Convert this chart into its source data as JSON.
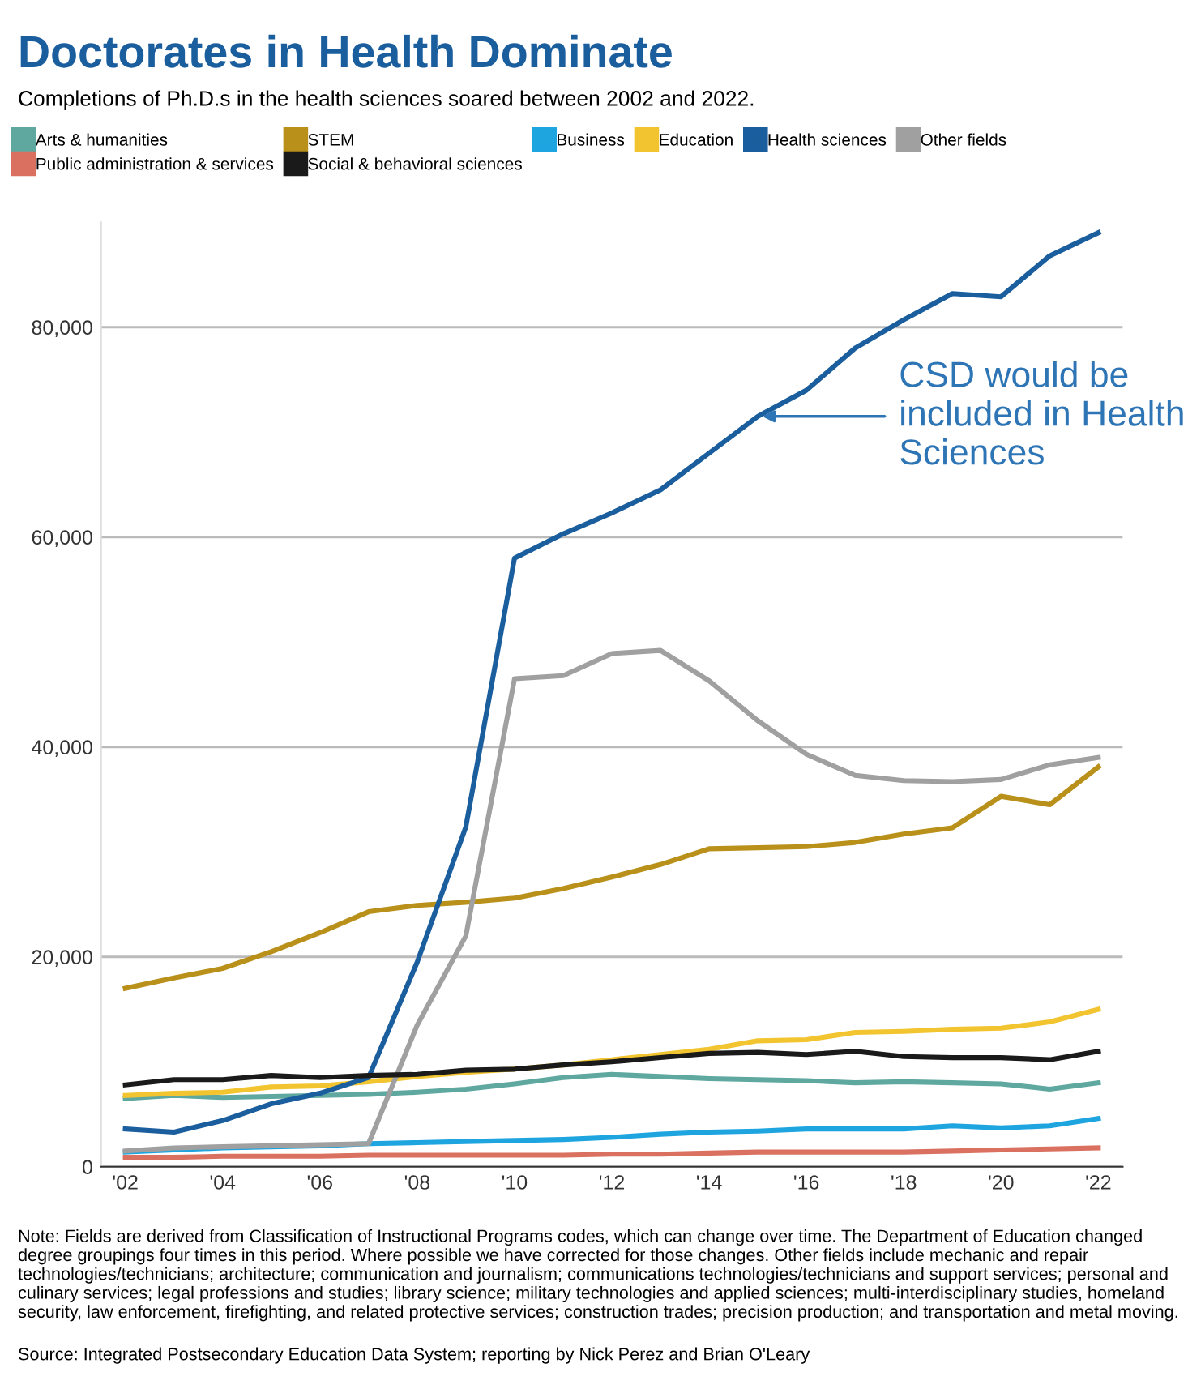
{
  "chart_data": {
    "type": "line",
    "title": "Doctorates in Health Dominate",
    "subtitle": "Completions of Ph.D.s in the health sciences soared between 2002 and 2022.",
    "x": [
      2002,
      2003,
      2004,
      2005,
      2006,
      2007,
      2008,
      2009,
      2010,
      2011,
      2012,
      2013,
      2014,
      2015,
      2016,
      2017,
      2018,
      2019,
      2020,
      2021,
      2022
    ],
    "series": [
      {
        "name": "Arts & humanities",
        "color": "#5fa8a0",
        "values": [
          6500,
          6800,
          6600,
          6700,
          6800,
          6900,
          7100,
          7400,
          7900,
          8500,
          8800,
          8600,
          8400,
          8300,
          8200,
          8000,
          8100,
          8000,
          7900,
          7400,
          8000
        ]
      },
      {
        "name": "STEM",
        "color": "#b8901a",
        "values": [
          17000,
          18000,
          18900,
          20500,
          22300,
          24300,
          24900,
          25200,
          25600,
          26500,
          27600,
          28800,
          30300,
          30400,
          30500,
          30900,
          31700,
          32300,
          35300,
          34500,
          38100
        ]
      },
      {
        "name": "Business",
        "color": "#1ea5e0",
        "values": [
          1400,
          1600,
          1800,
          1900,
          2000,
          2200,
          2300,
          2400,
          2500,
          2600,
          2800,
          3100,
          3300,
          3400,
          3600,
          3600,
          3600,
          3900,
          3700,
          3900,
          4600
        ]
      },
      {
        "name": "Education",
        "color": "#f2c530",
        "values": [
          6800,
          7000,
          7100,
          7600,
          7700,
          8100,
          8600,
          9000,
          9300,
          9700,
          10200,
          10700,
          11200,
          12000,
          12100,
          12800,
          12900,
          13100,
          13200,
          13800,
          15000
        ]
      },
      {
        "name": "Health sciences",
        "color": "#1b5e9e",
        "values": [
          3600,
          3300,
          4400,
          6000,
          7000,
          8500,
          19500,
          32400,
          58000,
          60300,
          62300,
          64500,
          68000,
          71500,
          74000,
          78000,
          80700,
          83200,
          82900,
          86800,
          89000
        ]
      },
      {
        "name": "Other fields",
        "color": "#a0a0a0",
        "values": [
          1500,
          1800,
          1900,
          2000,
          2100,
          2200,
          13500,
          22000,
          46500,
          46800,
          48900,
          49200,
          46300,
          42500,
          39300,
          37300,
          36800,
          36700,
          36900,
          38300,
          39000
        ]
      },
      {
        "name": "Public administration & services",
        "color": "#d97060",
        "values": [
          900,
          900,
          1000,
          1000,
          1000,
          1100,
          1100,
          1100,
          1100,
          1100,
          1200,
          1200,
          1300,
          1400,
          1400,
          1400,
          1400,
          1500,
          1600,
          1700,
          1800
        ]
      },
      {
        "name": "Social & behavioral sciences",
        "color": "#1a1a1a",
        "values": [
          7800,
          8300,
          8300,
          8700,
          8500,
          8700,
          8800,
          9200,
          9300,
          9700,
          10000,
          10400,
          10800,
          10900,
          10700,
          11000,
          10500,
          10400,
          10400,
          10200,
          11000
        ]
      }
    ],
    "xlim": [
      2001.5,
      2022.5
    ],
    "xticks": [
      {
        "value": 2002,
        "label": "'02"
      },
      {
        "value": 2004,
        "label": "'04"
      },
      {
        "value": 2006,
        "label": "'06"
      },
      {
        "value": 2008,
        "label": "'08"
      },
      {
        "value": 2010,
        "label": "'10"
      },
      {
        "value": 2012,
        "label": "'12"
      },
      {
        "value": 2014,
        "label": "'14"
      },
      {
        "value": 2016,
        "label": "'16"
      },
      {
        "value": 2018,
        "label": "'18"
      },
      {
        "value": 2020,
        "label": "'20"
      },
      {
        "value": 2022,
        "label": "'22"
      }
    ],
    "ylim": [
      0,
      90000
    ],
    "yticks": [
      {
        "value": 0,
        "label": "0"
      },
      {
        "value": 20000,
        "label": "20,000"
      },
      {
        "value": 40000,
        "label": "40,000"
      },
      {
        "value": 60000,
        "label": "60,000"
      },
      {
        "value": 80000,
        "label": "80,000"
      }
    ],
    "grid": "y",
    "legend": "top",
    "marker": "none",
    "line_style": "solid",
    "annotations": [
      {
        "text": "CSD would be included in Health Sciences",
        "x": 2015,
        "y": 71500
      },
      "Note: Fields are derived from Classification of Instructional Programs codes, which can change over time. The Department of Education changed degree groupings four times in this period. Where possible we have corrected for those changes. Other fields include mechanic and repair technologies/technicians; architecture; communication and journalism; communications technologies/technicians and support services; personal and culinary services; legal professions and studies; library science; military technologies and applied sciences; multi-interdisciplinary studies, homeland security, law enforcement, firefighting, and related protective services; construction trades; precision production; and transportation and metal moving.",
      "Source: Integrated Postsecondary Education Data System; reporting by Nick Perez and Brian O'Leary"
    ]
  }
}
